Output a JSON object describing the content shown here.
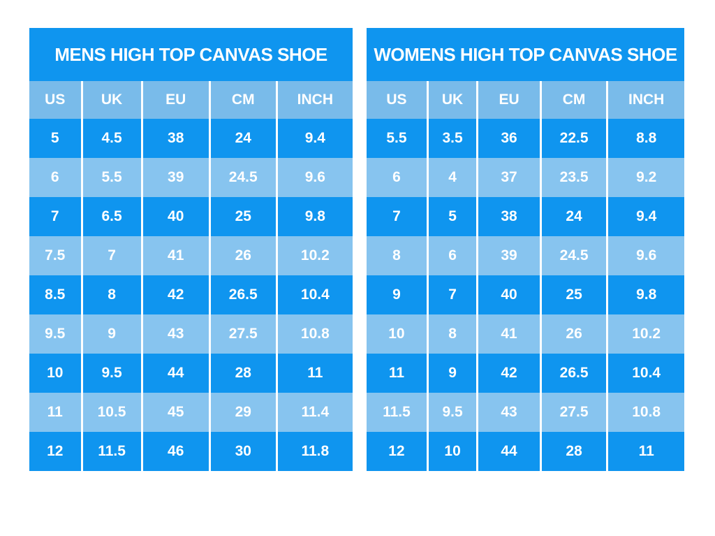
{
  "page": {
    "background": "#ffffff"
  },
  "colors": {
    "page_bg": "#ffffff",
    "title_bar": "#0f95ef",
    "row_dark": "#0f95ef",
    "row_light": "#87c4ef",
    "header_row": "#79bbea",
    "text": "#ffffff",
    "divider": "#ffffff"
  },
  "chart_data": [
    {
      "type": "table",
      "id": "mens",
      "title": "MENS HIGH TOP CANVAS SHOE",
      "columns": [
        "US",
        "UK",
        "EU",
        "CM",
        "INCH"
      ],
      "rows": [
        [
          "5",
          "4.5",
          "38",
          "24",
          "9.4"
        ],
        [
          "6",
          "5.5",
          "39",
          "24.5",
          "9.6"
        ],
        [
          "7",
          "6.5",
          "40",
          "25",
          "9.8"
        ],
        [
          "7.5",
          "7",
          "41",
          "26",
          "10.2"
        ],
        [
          "8.5",
          "8",
          "42",
          "26.5",
          "10.4"
        ],
        [
          "9.5",
          "9",
          "43",
          "27.5",
          "10.8"
        ],
        [
          "10",
          "9.5",
          "44",
          "28",
          "11"
        ],
        [
          "11",
          "10.5",
          "45",
          "29",
          "11.4"
        ],
        [
          "12",
          "11.5",
          "46",
          "30",
          "11.8"
        ]
      ]
    },
    {
      "type": "table",
      "id": "womens",
      "title": "WOMENS HIGH TOP CANVAS SHOE",
      "columns": [
        "US",
        "UK",
        "EU",
        "CM",
        "INCH"
      ],
      "rows": [
        [
          "5.5",
          "3.5",
          "36",
          "22.5",
          "8.8"
        ],
        [
          "6",
          "4",
          "37",
          "23.5",
          "9.2"
        ],
        [
          "7",
          "5",
          "38",
          "24",
          "9.4"
        ],
        [
          "8",
          "6",
          "39",
          "24.5",
          "9.6"
        ],
        [
          "9",
          "7",
          "40",
          "25",
          "9.8"
        ],
        [
          "10",
          "8",
          "41",
          "26",
          "10.2"
        ],
        [
          "11",
          "9",
          "42",
          "26.5",
          "10.4"
        ],
        [
          "11.5",
          "9.5",
          "43",
          "27.5",
          "10.8"
        ],
        [
          "12",
          "10",
          "44",
          "28",
          "11"
        ]
      ]
    }
  ]
}
